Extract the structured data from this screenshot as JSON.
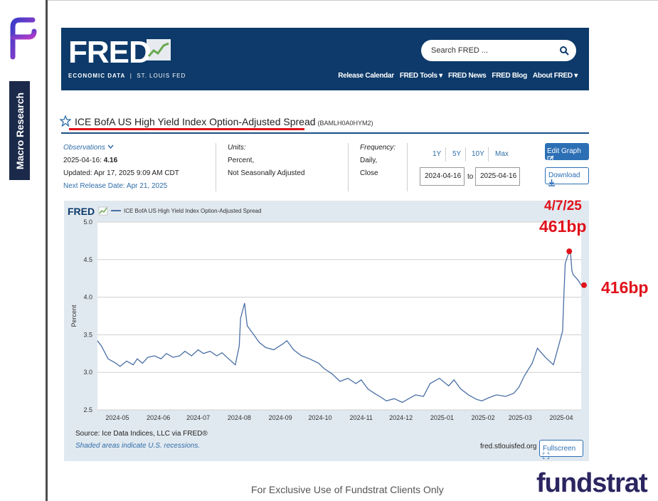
{
  "sidebar": {
    "label": "Macro Research"
  },
  "fred": {
    "logo": "FRED",
    "sub_left": "ECONOMIC DATA",
    "sub_sep": "|",
    "sub_right": "ST. LOUIS FED",
    "search_placeholder": "Search FRED ...",
    "nav": [
      "Release Calendar",
      "FRED Tools ▾",
      "FRED News",
      "FRED Blog",
      "About FRED ▾"
    ]
  },
  "series": {
    "title": "ICE BofA US High Yield Index Option-Adjusted Spread",
    "code": "(BAMLH0A0HYM2)"
  },
  "info": {
    "observations_label": "Observations",
    "obs_date": "2025-04-16:",
    "obs_value": "4.16",
    "updated": "Updated: Apr 17, 2025 9:09 AM CDT",
    "next_release": "Next Release Date: Apr 21, 2025",
    "units_label": "Units:",
    "units_1": "Percent,",
    "units_2": "Not Seasonally Adjusted",
    "freq_label": "Frequency:",
    "freq_1": "Daily,",
    "freq_2": "Close"
  },
  "range": {
    "buttons": [
      "1Y",
      "5Y",
      "10Y",
      "Max"
    ],
    "start": "2024-04-16",
    "to": "to",
    "end": "2025-04-16"
  },
  "buttons": {
    "edit": "Edit Graph",
    "download": "Download",
    "fullscreen": "Fullscreen"
  },
  "chart_footer": {
    "source": "Source: Ice Data Indices, LLC via FRED®",
    "shaded": "Shaded areas indicate U.S. recessions.",
    "url": "fred.stlouisfed.org"
  },
  "annotations": {
    "date": "4/7/25",
    "peak": "461bp",
    "last": "416bp"
  },
  "footer": {
    "note": "For Exclusive Use of Fundstrat Clients Only",
    "brand": "fundstrat"
  },
  "colors": {
    "line": "#4a6fa5",
    "header": "#0d3a6a",
    "panel": "#e1e9f0",
    "annotation": "#e0121b",
    "brand": "#2b2560"
  },
  "chart_data": {
    "type": "line",
    "legend_brand": "FRED",
    "series": [
      {
        "name": "ICE BofA US High Yield Index Option-Adjusted Spread",
        "x": [
          "2024-04-16",
          "2024-04-19",
          "2024-04-24",
          "2024-04-30",
          "2024-05-03",
          "2024-05-08",
          "2024-05-13",
          "2024-05-16",
          "2024-05-20",
          "2024-05-24",
          "2024-05-29",
          "2024-06-03",
          "2024-06-07",
          "2024-06-12",
          "2024-06-17",
          "2024-06-21",
          "2024-06-26",
          "2024-07-01",
          "2024-07-05",
          "2024-07-10",
          "2024-07-15",
          "2024-07-19",
          "2024-07-24",
          "2024-07-29",
          "2024-08-01",
          "2024-08-02",
          "2024-08-05",
          "2024-08-07",
          "2024-08-12",
          "2024-08-16",
          "2024-08-21",
          "2024-08-27",
          "2024-09-03",
          "2024-09-06",
          "2024-09-11",
          "2024-09-17",
          "2024-09-23",
          "2024-09-30",
          "2024-10-04",
          "2024-10-10",
          "2024-10-16",
          "2024-10-22",
          "2024-10-28",
          "2024-11-01",
          "2024-11-06",
          "2024-11-11",
          "2024-11-15",
          "2024-11-20",
          "2024-11-26",
          "2024-12-02",
          "2024-12-06",
          "2024-12-12",
          "2024-12-18",
          "2024-12-23",
          "2024-12-30",
          "2025-01-06",
          "2025-01-10",
          "2025-01-15",
          "2025-01-21",
          "2025-01-27",
          "2025-01-31",
          "2025-02-05",
          "2025-02-11",
          "2025-02-18",
          "2025-02-24",
          "2025-02-28",
          "2025-03-04",
          "2025-03-10",
          "2025-03-14",
          "2025-03-20",
          "2025-03-26",
          "2025-03-31",
          "2025-04-02",
          "2025-04-03",
          "2025-04-04",
          "2025-04-07",
          "2025-04-08",
          "2025-04-09",
          "2025-04-10",
          "2025-04-14",
          "2025-04-16"
        ],
        "y": [
          3.42,
          3.35,
          3.18,
          3.12,
          3.08,
          3.15,
          3.1,
          3.18,
          3.12,
          3.2,
          3.22,
          3.18,
          3.25,
          3.2,
          3.22,
          3.28,
          3.22,
          3.3,
          3.25,
          3.28,
          3.22,
          3.26,
          3.18,
          3.1,
          3.35,
          3.72,
          3.92,
          3.62,
          3.5,
          3.4,
          3.33,
          3.3,
          3.38,
          3.42,
          3.3,
          3.22,
          3.18,
          3.12,
          3.05,
          2.98,
          2.88,
          2.92,
          2.85,
          2.9,
          2.78,
          2.72,
          2.68,
          2.62,
          2.65,
          2.6,
          2.64,
          2.7,
          2.68,
          2.85,
          2.92,
          2.82,
          2.9,
          2.78,
          2.7,
          2.64,
          2.62,
          2.66,
          2.7,
          2.68,
          2.72,
          2.8,
          2.95,
          3.12,
          3.32,
          3.2,
          3.1,
          3.42,
          3.55,
          4.05,
          4.45,
          4.61,
          4.58,
          4.35,
          4.3,
          4.22,
          4.16
        ]
      }
    ],
    "x_ticks": [
      "2024-05",
      "2024-06",
      "2024-07",
      "2024-08",
      "2024-09",
      "2024-10",
      "2024-11",
      "2024-12",
      "2025-01",
      "2025-02",
      "2025-03",
      "2025-04"
    ],
    "y_ticks": [
      2.5,
      3.0,
      3.5,
      4.0,
      4.5,
      5.0
    ],
    "ylabel": "Percent",
    "ylim": [
      2.5,
      5.0
    ],
    "xlim": [
      "2024-04-16",
      "2025-04-16"
    ],
    "grid": true,
    "highlights": [
      {
        "x": "2025-04-07",
        "y": 4.61,
        "label": "461bp",
        "date_label": "4/7/25"
      },
      {
        "x": "2025-04-16",
        "y": 4.16,
        "label": "416bp"
      }
    ]
  }
}
